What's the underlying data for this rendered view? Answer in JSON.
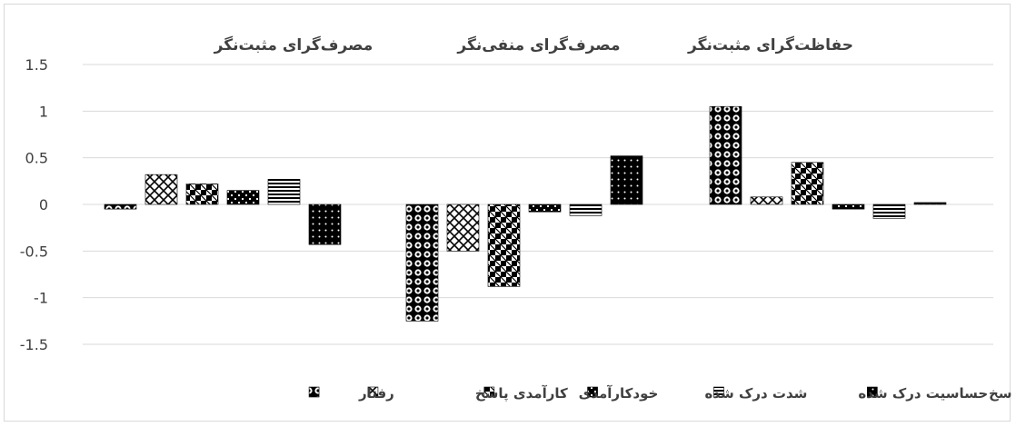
{
  "chart_data": {
    "type": "bar",
    "categories": [
      "مصرف‌گرای مثبت‌نگر",
      "مصرف‌گرای منفی‌نگر",
      "حفاظت‌گرای مثبت‌نگر"
    ],
    "ylim": [
      -1.5,
      1.5
    ],
    "yticks": [
      1.5,
      1,
      0.5,
      0,
      -0.5,
      -1,
      -1.5
    ],
    "grid": true,
    "legend_position": "bottom",
    "series": [
      {
        "name": "رفتار",
        "pattern": "checker",
        "values": [
          -0.05,
          -1.25,
          1.05
        ]
      },
      {
        "name": "کارآمدی پاسخ",
        "pattern": "zigzag",
        "values": [
          0.32,
          -0.5,
          0.08
        ]
      },
      {
        "name": "خودکارآمدی",
        "pattern": "plaid",
        "values": [
          0.22,
          -0.88,
          0.45
        ]
      },
      {
        "name": "شدت درک شده",
        "pattern": "bricks",
        "values": [
          0.15,
          -0.08,
          -0.05
        ]
      },
      {
        "name": "حساسیت درک شده",
        "pattern": "hlines",
        "values": [
          0.27,
          -0.12,
          -0.15
        ]
      },
      {
        "name": "هزینه های پاسخ",
        "pattern": "dots",
        "values": [
          -0.43,
          0.52,
          0.02
        ]
      }
    ]
  }
}
